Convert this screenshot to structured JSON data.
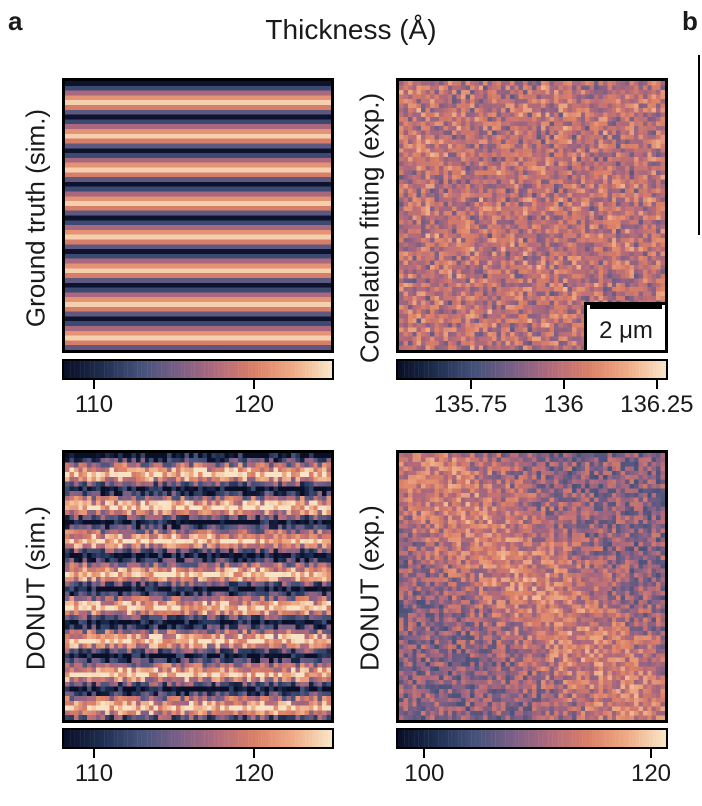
{
  "figure": {
    "panel_a": "a",
    "panel_b": "b",
    "title": "Thickness (Å)"
  },
  "panels": [
    {
      "id": "gt",
      "ylabel": "Ground truth (sim.)",
      "kind": "stripes",
      "seed": 11
    },
    {
      "id": "corr",
      "ylabel": "Correlation fitting (exp.)",
      "kind": "noise",
      "seed": 23,
      "scale_bar": "2 μm"
    },
    {
      "id": "donut_sim",
      "ylabel": "DONUT (sim.)",
      "kind": "stripes_noisy",
      "seed": 37
    },
    {
      "id": "donut_exp",
      "ylabel": "DONUT (exp.)",
      "kind": "noise_diag",
      "seed": 53
    }
  ],
  "colorbars": [
    {
      "id": "cb1",
      "ticks": [
        "110",
        "120"
      ],
      "tick_values": [
        110,
        120
      ],
      "range": [
        108,
        125
      ]
    },
    {
      "id": "cb2",
      "ticks": [
        "135.75",
        "136",
        "136.25"
      ],
      "tick_values": [
        135.75,
        136,
        136.25
      ],
      "range": [
        135.55,
        136.28
      ]
    },
    {
      "id": "cb3",
      "ticks": [
        "110",
        "120"
      ],
      "tick_values": [
        110,
        120
      ],
      "range": [
        108,
        125
      ]
    },
    {
      "id": "cb4",
      "ticks": [
        "100",
        "120"
      ],
      "tick_values": [
        100,
        120
      ],
      "range": [
        97.5,
        121.5
      ]
    }
  ],
  "colors": {
    "cmap": [
      "#0a0f28",
      "#1f2f52",
      "#45527a",
      "#7a5f86",
      "#b26a7c",
      "#db8067",
      "#eeaa84",
      "#f8e4c4"
    ]
  }
}
